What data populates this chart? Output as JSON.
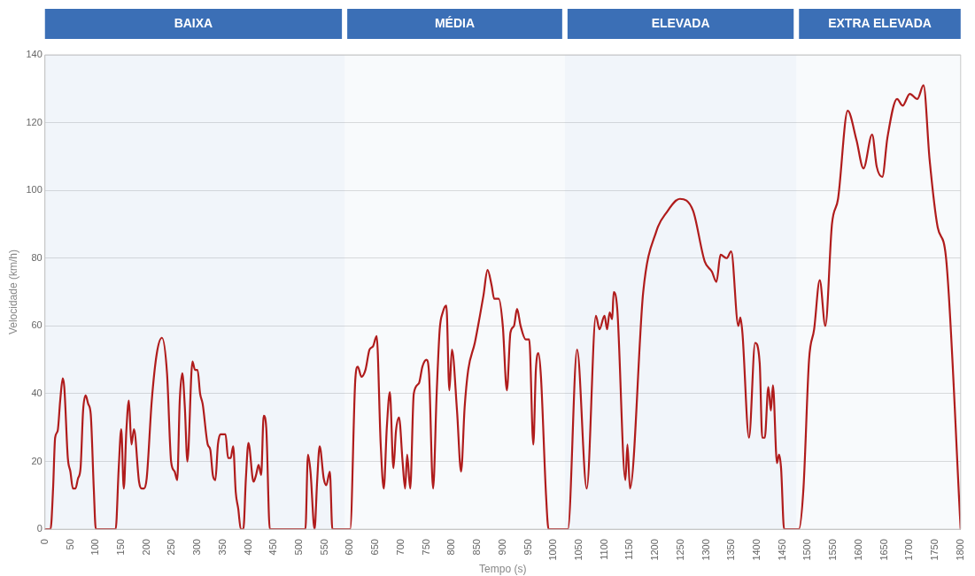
{
  "chart_data": {
    "type": "line",
    "xlabel": "Tempo (s)",
    "ylabel": "Velocidade (km/h)",
    "xlim": [
      0,
      1800
    ],
    "xticks": [
      0,
      50,
      100,
      150,
      200,
      250,
      300,
      350,
      400,
      450,
      500,
      550,
      600,
      650,
      700,
      750,
      800,
      850,
      900,
      950,
      1000,
      1050,
      1100,
      1150,
      1200,
      1250,
      1300,
      1350,
      1400,
      1450,
      1500,
      1550,
      1600,
      1650,
      1700,
      1750,
      1800
    ],
    "ylim": [
      0,
      140
    ],
    "yticks": [
      0,
      20,
      40,
      60,
      80,
      100,
      120,
      140
    ],
    "grid": "y",
    "marker": "none",
    "line_style": "solid",
    "legend": false,
    "bands": [
      {
        "axis": "x",
        "from": 0,
        "to": 589,
        "label": "BAIXA",
        "color": "#3b6fb6"
      },
      {
        "axis": "x",
        "from": 589,
        "to": 1022,
        "label": "MÉDIA",
        "color": "#3b6fb6"
      },
      {
        "axis": "x",
        "from": 1022,
        "to": 1477,
        "label": "ELEVADA",
        "color": "#3b6fb6"
      },
      {
        "axis": "x",
        "from": 1477,
        "to": 1800,
        "label": "EXTRA ELEVADA",
        "color": "#3b6fb6"
      }
    ],
    "series": [
      {
        "color": "#b01c1c",
        "x": [
          0,
          11,
          16,
          20,
          25,
          30,
          35,
          38,
          45,
          50,
          55,
          60,
          65,
          70,
          75,
          80,
          85,
          90,
          96,
          100,
          139,
          145,
          150,
          155,
          160,
          165,
          170,
          175,
          185,
          190,
          195,
          200,
          210,
          220,
          230,
          240,
          248,
          255,
          260,
          265,
          270,
          275,
          280,
          290,
          295,
          300,
          305,
          310,
          320,
          325,
          330,
          335,
          340,
          345,
          355,
          360,
          365,
          370,
          375,
          380,
          385,
          390,
          395,
          400,
          410,
          415,
          420,
          425,
          430,
          435,
          442,
          512,
          517,
          522,
          530,
          535,
          540,
          548,
          553,
          560,
          565,
          600,
          610,
          615,
          622,
          630,
          638,
          645,
          652,
          660,
          666,
          672,
          678,
          685,
          690,
          696,
          703,
          708,
          712,
          718,
          725,
          735,
          742,
          750,
          755,
          763,
          770,
          776,
          782,
          789,
          795,
          800,
          810,
          818,
          825,
          832,
          845,
          855,
          862,
          870,
          878,
          883,
          892,
          900,
          908,
          915,
          922,
          928,
          935,
          945,
          952,
          960,
          965,
          970,
          975,
          985,
          990,
          1028,
          1046,
          1065,
          1083,
          1090,
          1100,
          1105,
          1110,
          1115,
          1118,
          1125,
          1141,
          1145,
          1150,
          1176,
          1202,
          1222,
          1248,
          1274,
          1297,
          1311,
          1320,
          1328,
          1340,
          1349,
          1363,
          1367,
          1371,
          1384,
          1396,
          1405,
          1410,
          1415,
          1422,
          1427,
          1431,
          1439,
          1443,
          1447,
          1453,
          1482,
          1491,
          1502,
          1512,
          1523,
          1534,
          1547,
          1559,
          1578,
          1595,
          1609,
          1626,
          1635,
          1646,
          1656,
          1675,
          1686,
          1700,
          1715,
          1727,
          1739,
          1755,
          1771,
          1800
        ],
        "values": [
          0,
          0,
          12,
          27,
          29,
          38,
          44.5,
          42,
          21,
          17,
          12,
          12,
          15,
          18,
          35,
          39.5,
          37,
          34,
          12,
          0,
          0,
          18,
          29.5,
          12,
          29,
          38,
          25,
          29.5,
          14,
          12,
          12,
          15,
          38,
          52,
          56.5,
          46,
          20,
          17,
          14.5,
          38,
          46,
          36,
          20,
          49.5,
          47,
          47,
          40,
          37,
          25,
          23.5,
          16,
          14.5,
          25,
          28,
          28,
          21,
          21,
          24.5,
          11,
          6,
          0,
          0,
          15,
          25.5,
          14,
          16,
          19,
          16,
          33.5,
          30,
          0,
          0,
          22,
          17,
          0,
          14,
          24.5,
          15,
          13,
          17,
          0,
          0,
          44,
          48,
          45,
          47,
          53,
          54,
          57,
          25,
          12,
          30,
          40.5,
          18,
          29,
          33,
          20,
          12,
          22,
          12,
          40,
          43,
          48,
          50,
          46,
          12,
          40,
          59,
          64,
          66,
          41,
          53,
          35,
          17,
          36,
          47,
          55,
          63,
          69,
          76.5,
          72,
          68,
          68,
          60,
          41,
          58,
          60,
          65,
          60,
          56,
          56,
          25,
          47,
          52,
          45,
          10,
          0,
          0,
          53,
          12,
          63,
          59,
          63,
          59,
          64,
          62,
          70,
          65,
          14.5,
          25,
          12,
          70,
          88,
          93.5,
          97.5,
          94,
          79,
          76,
          73,
          81,
          80,
          82,
          60,
          62.5,
          58,
          27,
          55,
          49,
          27,
          27,
          42,
          35,
          42.5,
          19.5,
          22,
          18,
          0,
          0,
          12,
          50,
          59,
          73.5,
          60,
          90,
          97.5,
          123.5,
          115,
          106.5,
          116.5,
          107,
          104,
          115.5,
          127,
          125,
          128.5,
          127,
          131,
          109,
          89,
          80.5,
          0
        ]
      }
    ]
  }
}
